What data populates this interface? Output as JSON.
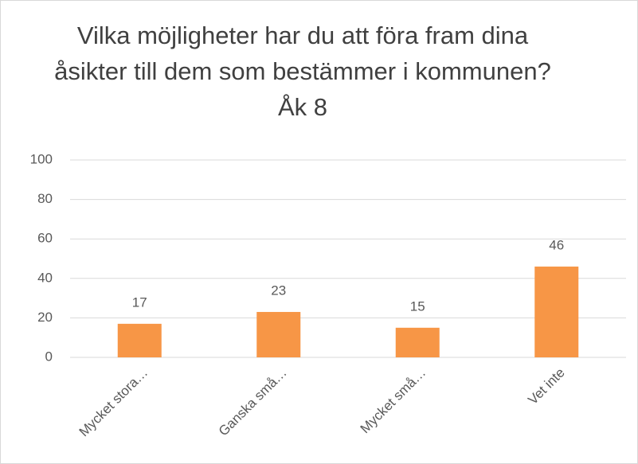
{
  "chart_data": {
    "type": "bar",
    "title": "Vilka möjligheter har du att föra fram dina åsikter till dem som bestämmer i kommunen?  Åk 8",
    "categories": [
      "Mycket stora…",
      "Ganska små…",
      "Mycket små…",
      "Vet inte"
    ],
    "values": [
      17,
      23,
      15,
      46
    ],
    "color": "#f79646",
    "ylim": [
      0,
      100
    ],
    "yticks": [
      0,
      20,
      40,
      60,
      80,
      100
    ],
    "grid": true
  }
}
